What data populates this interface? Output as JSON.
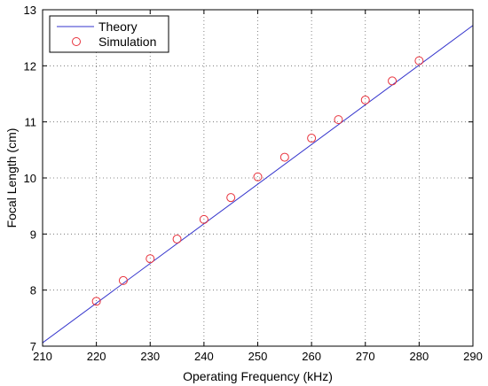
{
  "chart_data": {
    "type": "line",
    "xlabel": "Operating Frequency (kHz)",
    "ylabel": "Focal Length (cm)",
    "xlim": [
      210,
      290
    ],
    "ylim": [
      7,
      13
    ],
    "xticks": [
      210,
      220,
      230,
      240,
      250,
      260,
      270,
      280,
      290
    ],
    "yticks": [
      7,
      8,
      9,
      10,
      11,
      12,
      13
    ],
    "grid": true,
    "legend": {
      "placement": "top-left"
    },
    "series": [
      {
        "name": "Theory",
        "style": "line",
        "color": "#3333cc",
        "x": [
          210,
          290
        ],
        "y": [
          7.06,
          12.72
        ]
      },
      {
        "name": "Simulation",
        "style": "markers",
        "marker": "circle",
        "color": "#e8323c",
        "x": [
          220,
          225,
          230,
          235,
          240,
          245,
          250,
          255,
          260,
          265,
          270,
          275,
          280
        ],
        "y": [
          7.8,
          8.17,
          8.56,
          8.91,
          9.26,
          9.65,
          10.02,
          10.37,
          10.71,
          11.04,
          11.39,
          11.73,
          12.09
        ]
      }
    ]
  }
}
